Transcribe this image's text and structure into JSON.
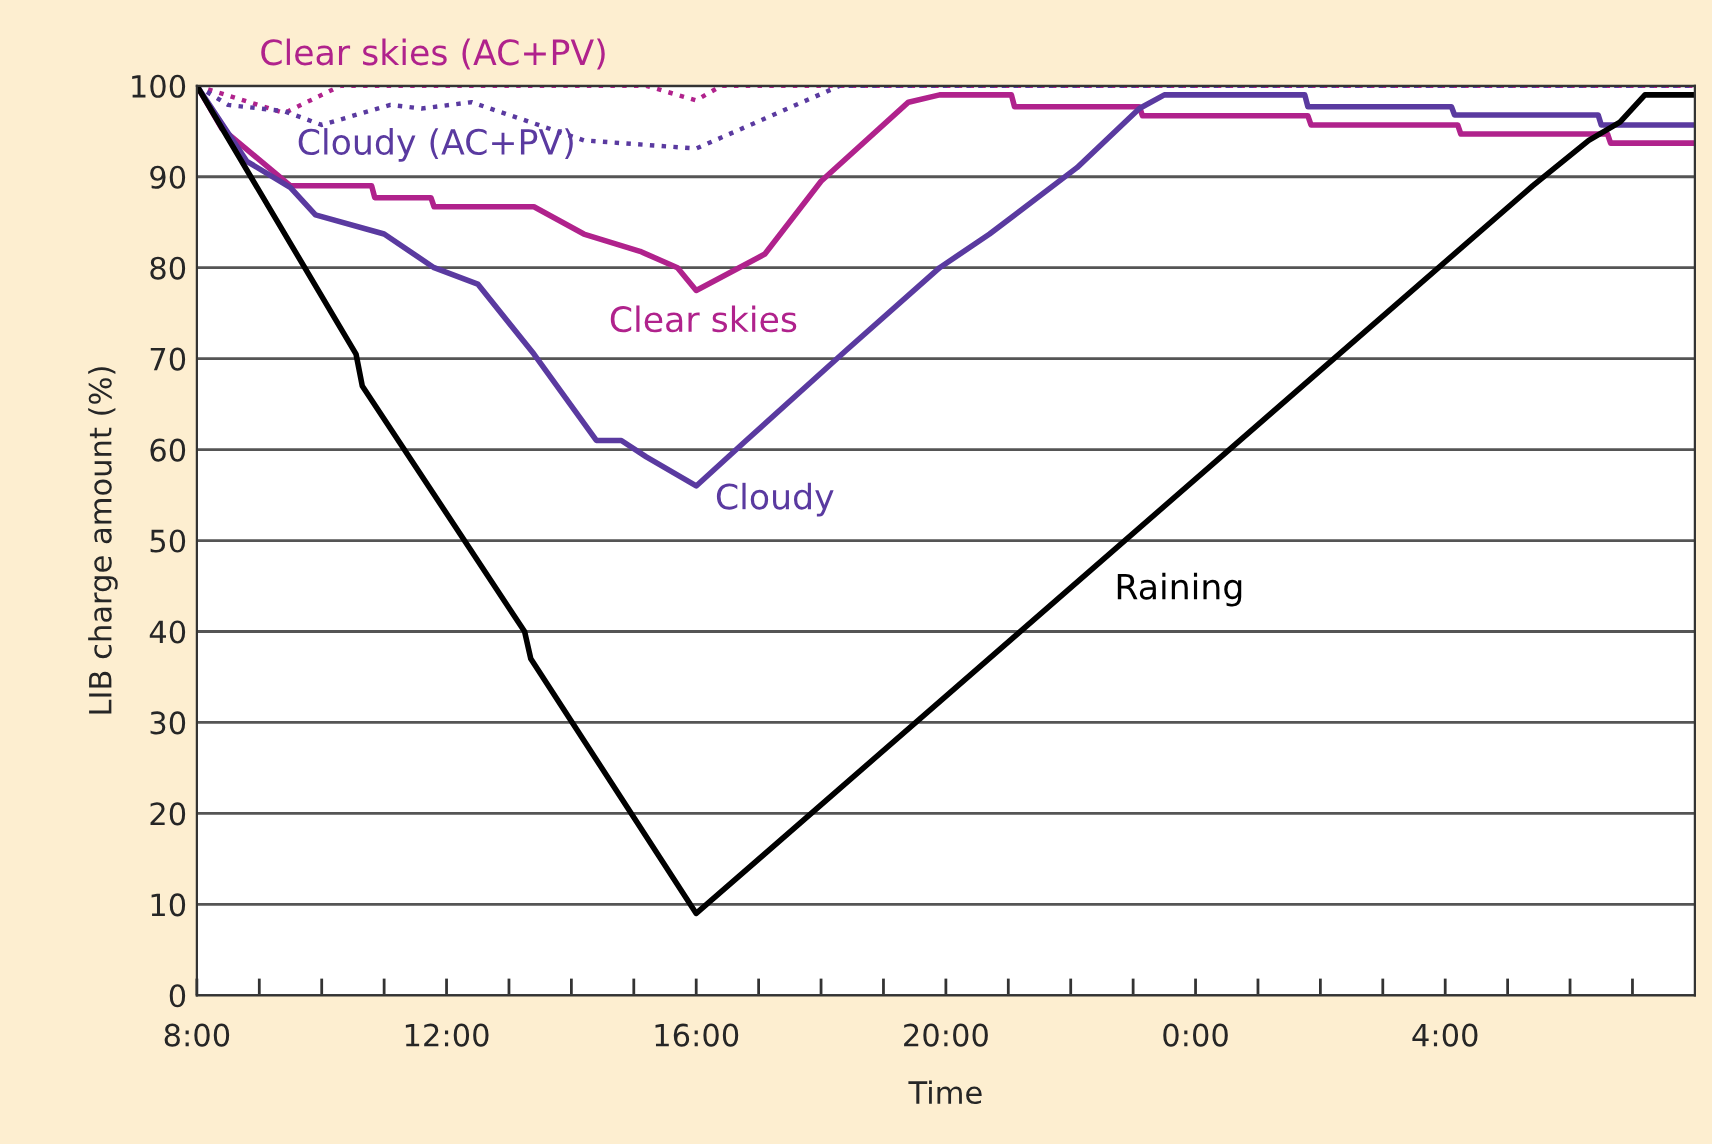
{
  "chart_data": {
    "type": "line",
    "xlabel": "Time",
    "ylabel": "LIB charge amount (%)",
    "xlim": [
      "2000-01-01T08:00",
      "2000-01-02T08:00"
    ],
    "ylim": [
      0,
      100
    ],
    "xticks": [
      {
        "value": "2000-01-01T08:00",
        "label": "8:00"
      },
      {
        "value": "2000-01-01T09:00",
        "label": null
      },
      {
        "value": "2000-01-01T10:00",
        "label": null
      },
      {
        "value": "2000-01-01T11:00",
        "label": null
      },
      {
        "value": "2000-01-01T12:00",
        "label": "12:00"
      },
      {
        "value": "2000-01-01T13:00",
        "label": null
      },
      {
        "value": "2000-01-01T14:00",
        "label": null
      },
      {
        "value": "2000-01-01T15:00",
        "label": null
      },
      {
        "value": "2000-01-01T16:00",
        "label": "16:00"
      },
      {
        "value": "2000-01-01T17:00",
        "label": null
      },
      {
        "value": "2000-01-01T18:00",
        "label": null
      },
      {
        "value": "2000-01-01T19:00",
        "label": null
      },
      {
        "value": "2000-01-01T20:00",
        "label": "20:00"
      },
      {
        "value": "2000-01-01T21:00",
        "label": null
      },
      {
        "value": "2000-01-01T22:00",
        "label": null
      },
      {
        "value": "2000-01-01T23:00",
        "label": null
      },
      {
        "value": "2000-01-02T00:00",
        "label": "0:00"
      },
      {
        "value": "2000-01-02T01:00",
        "label": null
      },
      {
        "value": "2000-01-02T02:00",
        "label": null
      },
      {
        "value": "2000-01-02T03:00",
        "label": null
      },
      {
        "value": "2000-01-02T04:00",
        "label": "4:00"
      },
      {
        "value": "2000-01-02T05:00",
        "label": null
      },
      {
        "value": "2000-01-02T06:00",
        "label": null
      },
      {
        "value": "2000-01-02T07:00",
        "label": null
      }
    ],
    "yticks": [
      0,
      10,
      20,
      30,
      40,
      50,
      60,
      70,
      80,
      90,
      100
    ],
    "grid": "y",
    "series": [
      {
        "name": "Clear skies (AC+PV)",
        "color": "#b0228c",
        "line_style": "dotted",
        "x": [
          "2000-01-01T08:00",
          "2000-01-01T09:24",
          "2000-01-01T10:18",
          "2000-01-01T15:12",
          "2000-01-01T16:00",
          "2000-01-01T16:24",
          "2000-01-02T08:00"
        ],
        "values": [
          100,
          97,
          100,
          100,
          98.4,
          100,
          100
        ]
      },
      {
        "name": "Cloudy (AC+PV)",
        "color": "#5a3aa0",
        "line_style": "dotted",
        "x": [
          "2000-01-01T08:00",
          "2000-01-01T08:30",
          "2000-01-01T09:24",
          "2000-01-01T10:00",
          "2000-01-01T11:06",
          "2000-01-01T11:36",
          "2000-01-01T12:24",
          "2000-01-01T14:12",
          "2000-01-01T16:00",
          "2000-01-01T18:18",
          "2000-01-02T08:00"
        ],
        "values": [
          100,
          97.9,
          97.2,
          95.7,
          97.9,
          97.5,
          98.2,
          94,
          93.1,
          100,
          100
        ]
      },
      {
        "name": "Clear skies",
        "color": "#b0228c",
        "line_style": "solid",
        "x": [
          "2000-01-01T08:00",
          "2000-01-01T08:24",
          "2000-01-01T09:30",
          "2000-01-01T10:48",
          "2000-01-01T10:51",
          "2000-01-01T11:45",
          "2000-01-01T11:48",
          "2000-01-01T13:24",
          "2000-01-01T14:12",
          "2000-01-01T15:06",
          "2000-01-01T15:42",
          "2000-01-01T16:00",
          "2000-01-01T17:06",
          "2000-01-01T18:00",
          "2000-01-01T19:24",
          "2000-01-01T19:54",
          "2000-01-01T21:03",
          "2000-01-01T21:06",
          "2000-01-01T23:06",
          "2000-01-01T23:09",
          "2000-01-02T01:48",
          "2000-01-02T01:51",
          "2000-01-02T04:12",
          "2000-01-02T04:15",
          "2000-01-02T06:36",
          "2000-01-02T06:39",
          "2000-01-02T08:00"
        ],
        "values": [
          100,
          95.3,
          89,
          89,
          87.7,
          87.7,
          86.7,
          86.7,
          83.7,
          81.8,
          80,
          77.5,
          81.5,
          89.5,
          98.2,
          99,
          99,
          97.7,
          97.7,
          96.7,
          96.7,
          95.7,
          95.7,
          94.7,
          94.7,
          93.7,
          93.7
        ]
      },
      {
        "name": "Cloudy",
        "color": "#5a3aa0",
        "line_style": "solid",
        "x": [
          "2000-01-01T08:00",
          "2000-01-01T08:48",
          "2000-01-01T09:30",
          "2000-01-01T09:54",
          "2000-01-01T11:00",
          "2000-01-01T11:48",
          "2000-01-01T12:30",
          "2000-01-01T13:24",
          "2000-01-01T14:24",
          "2000-01-01T14:48",
          "2000-01-01T15:12",
          "2000-01-01T16:00",
          "2000-01-01T16:48",
          "2000-01-01T18:24",
          "2000-01-01T19:54",
          "2000-01-01T20:42",
          "2000-01-01T22:06",
          "2000-01-01T23:06",
          "2000-01-01T23:30",
          "2000-01-02T01:45",
          "2000-01-02T01:48",
          "2000-01-02T04:06",
          "2000-01-02T04:09",
          "2000-01-02T06:27",
          "2000-01-02T06:30",
          "2000-01-02T08:00"
        ],
        "values": [
          100,
          91.7,
          88.8,
          85.8,
          83.7,
          80,
          78.2,
          70.5,
          61,
          61,
          59.2,
          56,
          61,
          70.9,
          80,
          83.7,
          91,
          97.5,
          99,
          99,
          97.7,
          97.7,
          96.8,
          96.8,
          95.7,
          95.7
        ]
      },
      {
        "name": "Raining",
        "color": "#000000",
        "line_style": "solid",
        "x": [
          "2000-01-01T08:00",
          "2000-01-01T10:33",
          "2000-01-01T10:39",
          "2000-01-01T13:15",
          "2000-01-01T13:21",
          "2000-01-01T16:00",
          "2000-01-02T05:24",
          "2000-01-02T06:18",
          "2000-01-02T06:48",
          "2000-01-02T07:12",
          "2000-01-02T08:00"
        ],
        "values": [
          100,
          70.5,
          67,
          40,
          37,
          9,
          89,
          94,
          96,
          99,
          99
        ]
      }
    ]
  }
}
